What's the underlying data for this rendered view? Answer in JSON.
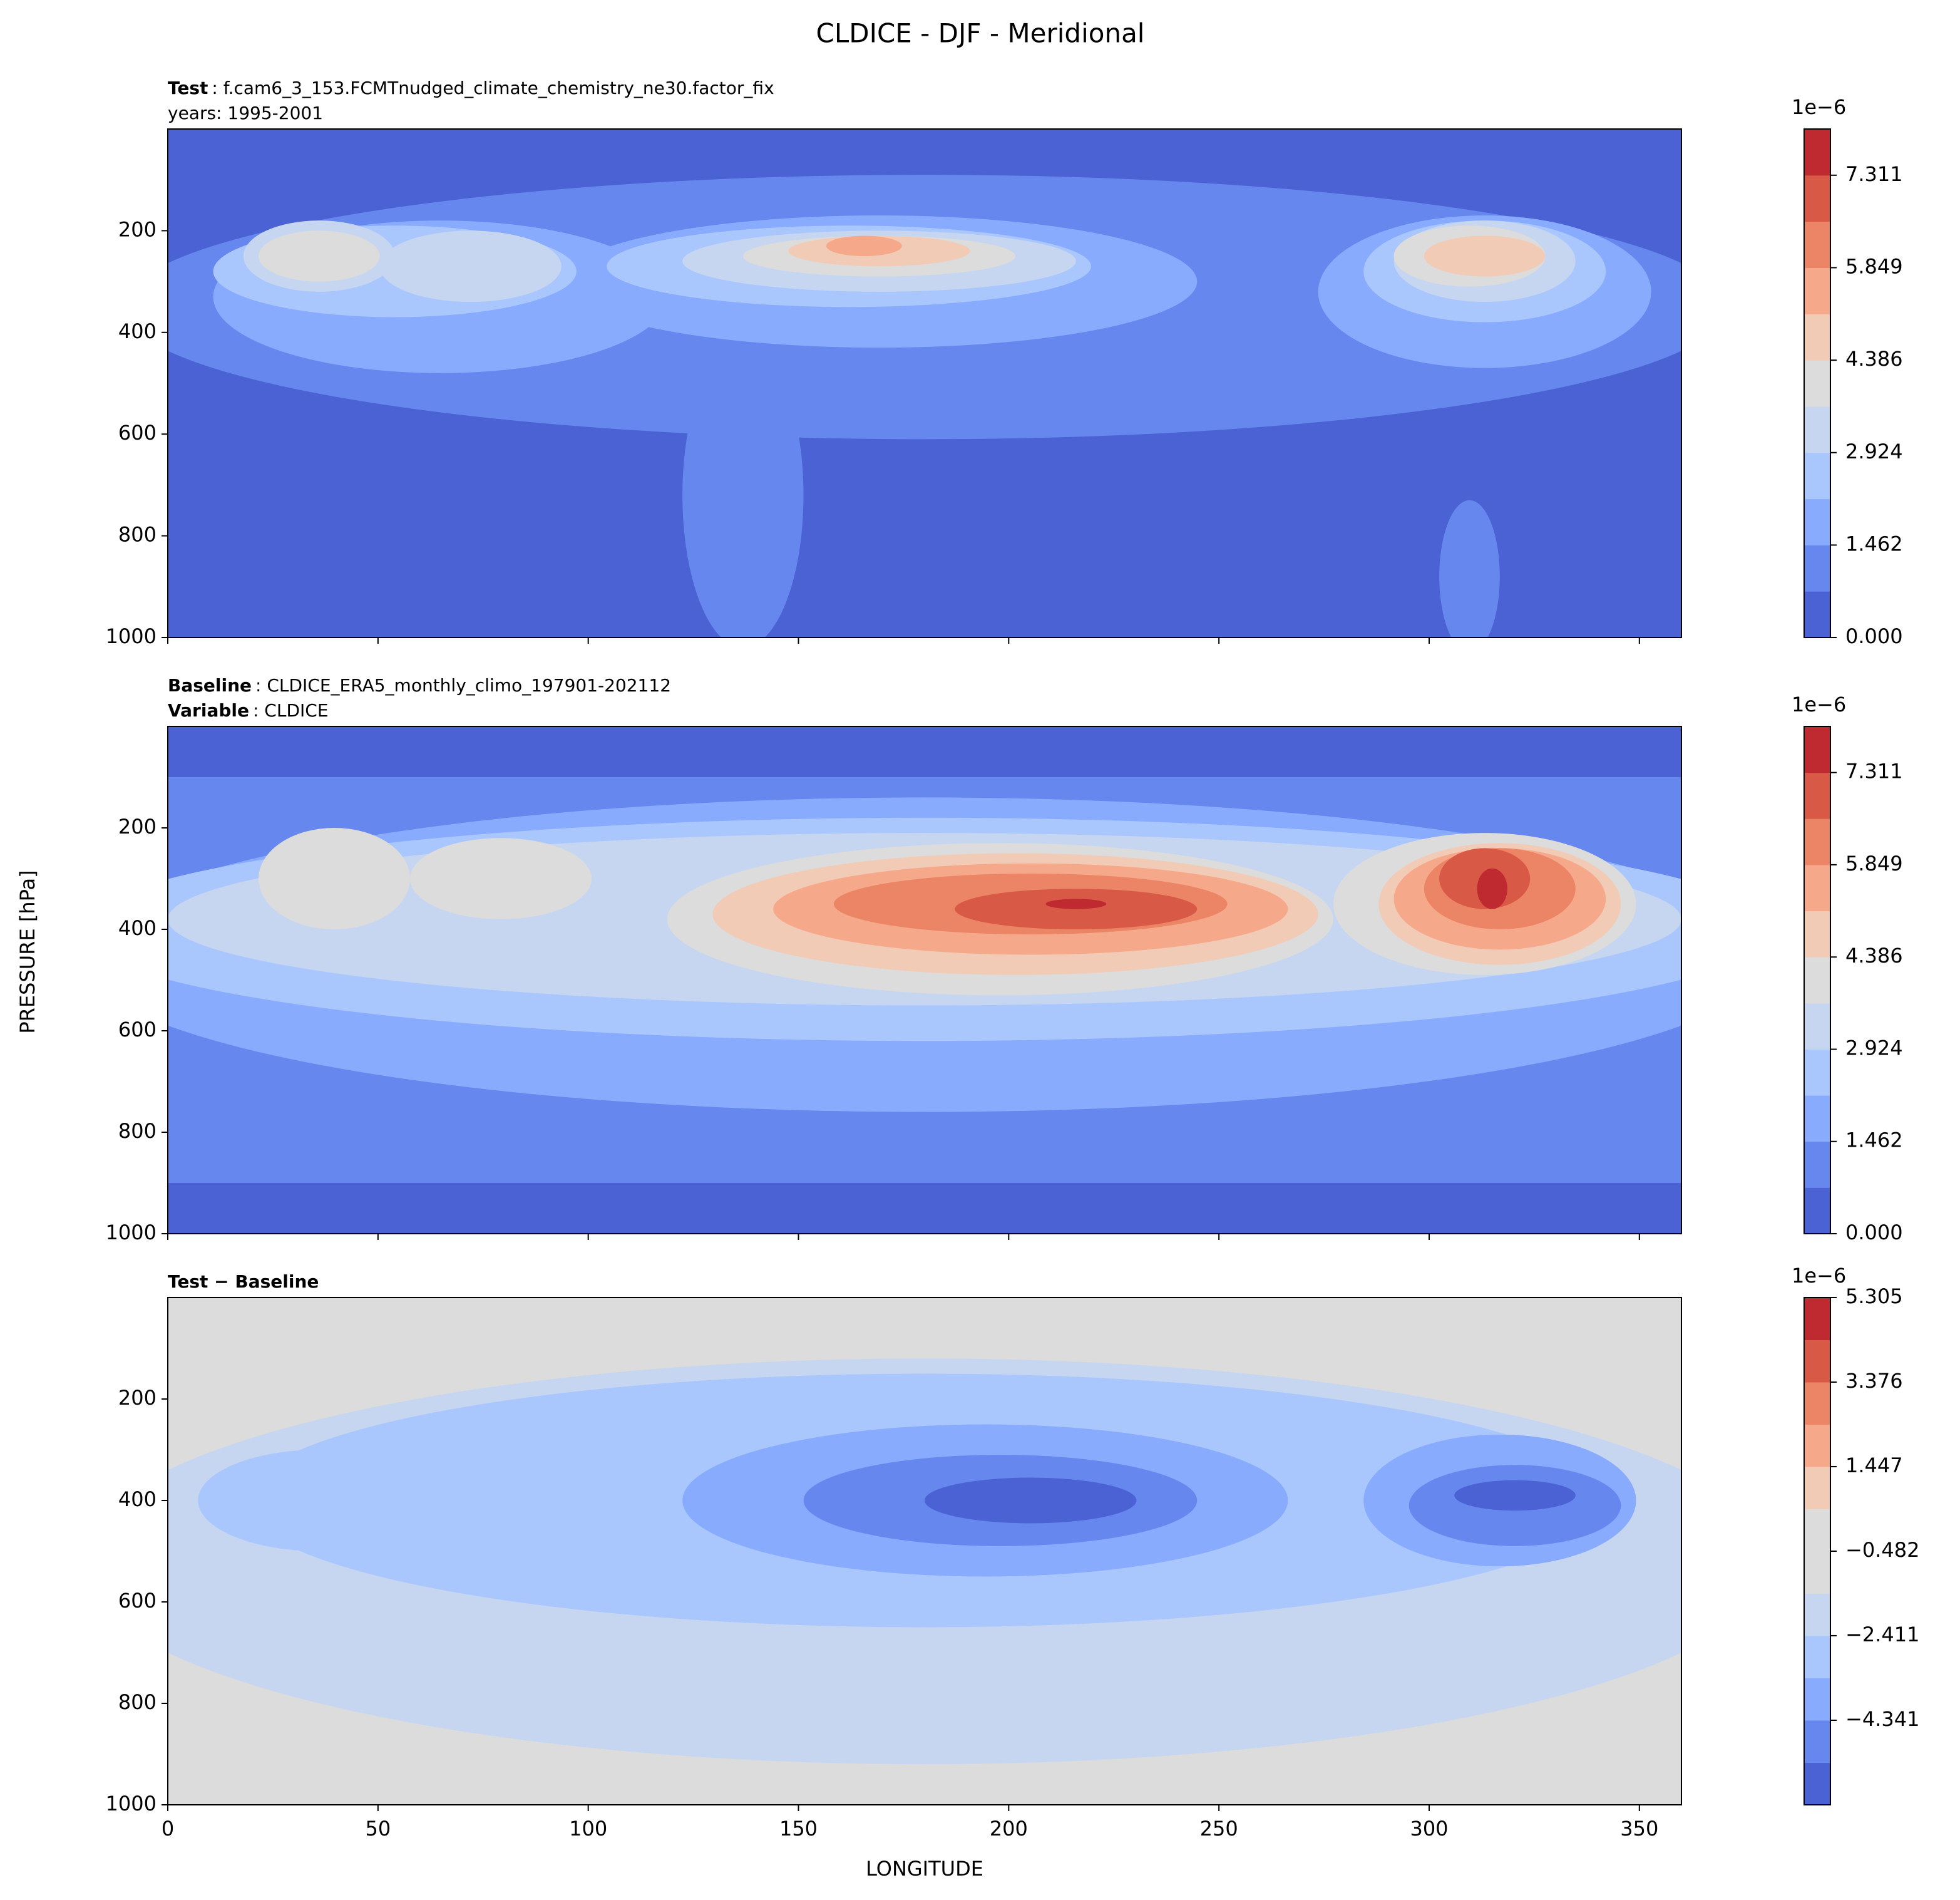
{
  "title": "CLDICE - DJF - Meridional",
  "ylabel": "PRESSURE [hPa]",
  "chart_data": [
    {
      "type": "contourf",
      "subtitle_lines": [
        {
          "label": "Test",
          "text": ": f.cam6_3_153.FCMTnudged_climate_chemistry_ne30.factor_fix"
        },
        {
          "text": "years: 1995-2001"
        }
      ],
      "xlim": [
        0,
        360
      ],
      "xticks": [
        0,
        50,
        100,
        150,
        200,
        250,
        300,
        350
      ],
      "show_xticklabels": false,
      "ylim": [
        1000,
        0
      ],
      "yticks": [
        200,
        400,
        600,
        800,
        1000
      ],
      "clim": [
        0,
        8.042
      ],
      "colors": [
        "#4a62d3",
        "#6687ed",
        "#88abfd",
        "#aac7fd",
        "#c7d6f0",
        "#dcdcdc",
        "#f1cbb6",
        "#f6a88a",
        "#ec8466",
        "#d85a46",
        "#bf2a30"
      ],
      "colorbar_offset": "1e−6",
      "colorbar_ticks": [
        {
          "value": 0,
          "label": "0.000"
        },
        {
          "value": 1.462,
          "label": "1.462"
        },
        {
          "value": 2.924,
          "label": "2.924"
        },
        {
          "value": 4.386,
          "label": "4.386"
        },
        {
          "value": 5.849,
          "label": "5.849"
        },
        {
          "value": 7.311,
          "label": "7.311"
        }
      ]
    },
    {
      "type": "contourf",
      "subtitle_lines": [
        {
          "label": "Baseline",
          "text": ": CLDICE_ERA5_monthly_climo_197901-202112"
        },
        {
          "label": "Variable",
          "text": ": CLDICE"
        }
      ],
      "xlim": [
        0,
        360
      ],
      "xticks": [
        0,
        50,
        100,
        150,
        200,
        250,
        300,
        350
      ],
      "show_xticklabels": false,
      "ylim": [
        1000,
        0
      ],
      "yticks": [
        200,
        400,
        600,
        800,
        1000
      ],
      "clim": [
        0,
        8.042
      ],
      "colors": [
        "#4a62d3",
        "#6687ed",
        "#88abfd",
        "#aac7fd",
        "#c7d6f0",
        "#dcdcdc",
        "#f1cbb6",
        "#f6a88a",
        "#ec8466",
        "#d85a46",
        "#bf2a30"
      ],
      "colorbar_offset": "1e−6",
      "colorbar_ticks": [
        {
          "value": 0,
          "label": "0.000"
        },
        {
          "value": 1.462,
          "label": "1.462"
        },
        {
          "value": 2.924,
          "label": "2.924"
        },
        {
          "value": 4.386,
          "label": "4.386"
        },
        {
          "value": 5.849,
          "label": "5.849"
        },
        {
          "value": 7.311,
          "label": "7.311"
        }
      ]
    },
    {
      "type": "contourf",
      "subtitle_lines": [
        {
          "label": "Test − Baseline"
        }
      ],
      "xlabel": "LONGITUDE",
      "xlim": [
        0,
        360
      ],
      "xticks": [
        0,
        50,
        100,
        150,
        200,
        250,
        300,
        350
      ],
      "show_xticklabels": true,
      "ylim": [
        1000,
        0
      ],
      "yticks": [
        200,
        400,
        600,
        800,
        1000
      ],
      "clim": [
        -6.27,
        5.305
      ],
      "colors": [
        "#4a62d3",
        "#6687ed",
        "#88abfd",
        "#aac7fd",
        "#c7d6f0",
        "#dcdcdc",
        "#dcdcdc",
        "#f1cbb6",
        "#f6a88a",
        "#ec8466",
        "#d85a46",
        "#bf2a30"
      ],
      "colorbar_offset": "1e−6",
      "colorbar_ticks": [
        {
          "value": -4.341,
          "label": "−4.341"
        },
        {
          "value": -2.411,
          "label": "−2.411"
        },
        {
          "value": -0.482,
          "label": "−0.482"
        },
        {
          "value": 1.447,
          "label": "1.447"
        },
        {
          "value": 3.376,
          "label": "3.376"
        },
        {
          "value": 5.305,
          "label": "5.305"
        }
      ]
    }
  ]
}
